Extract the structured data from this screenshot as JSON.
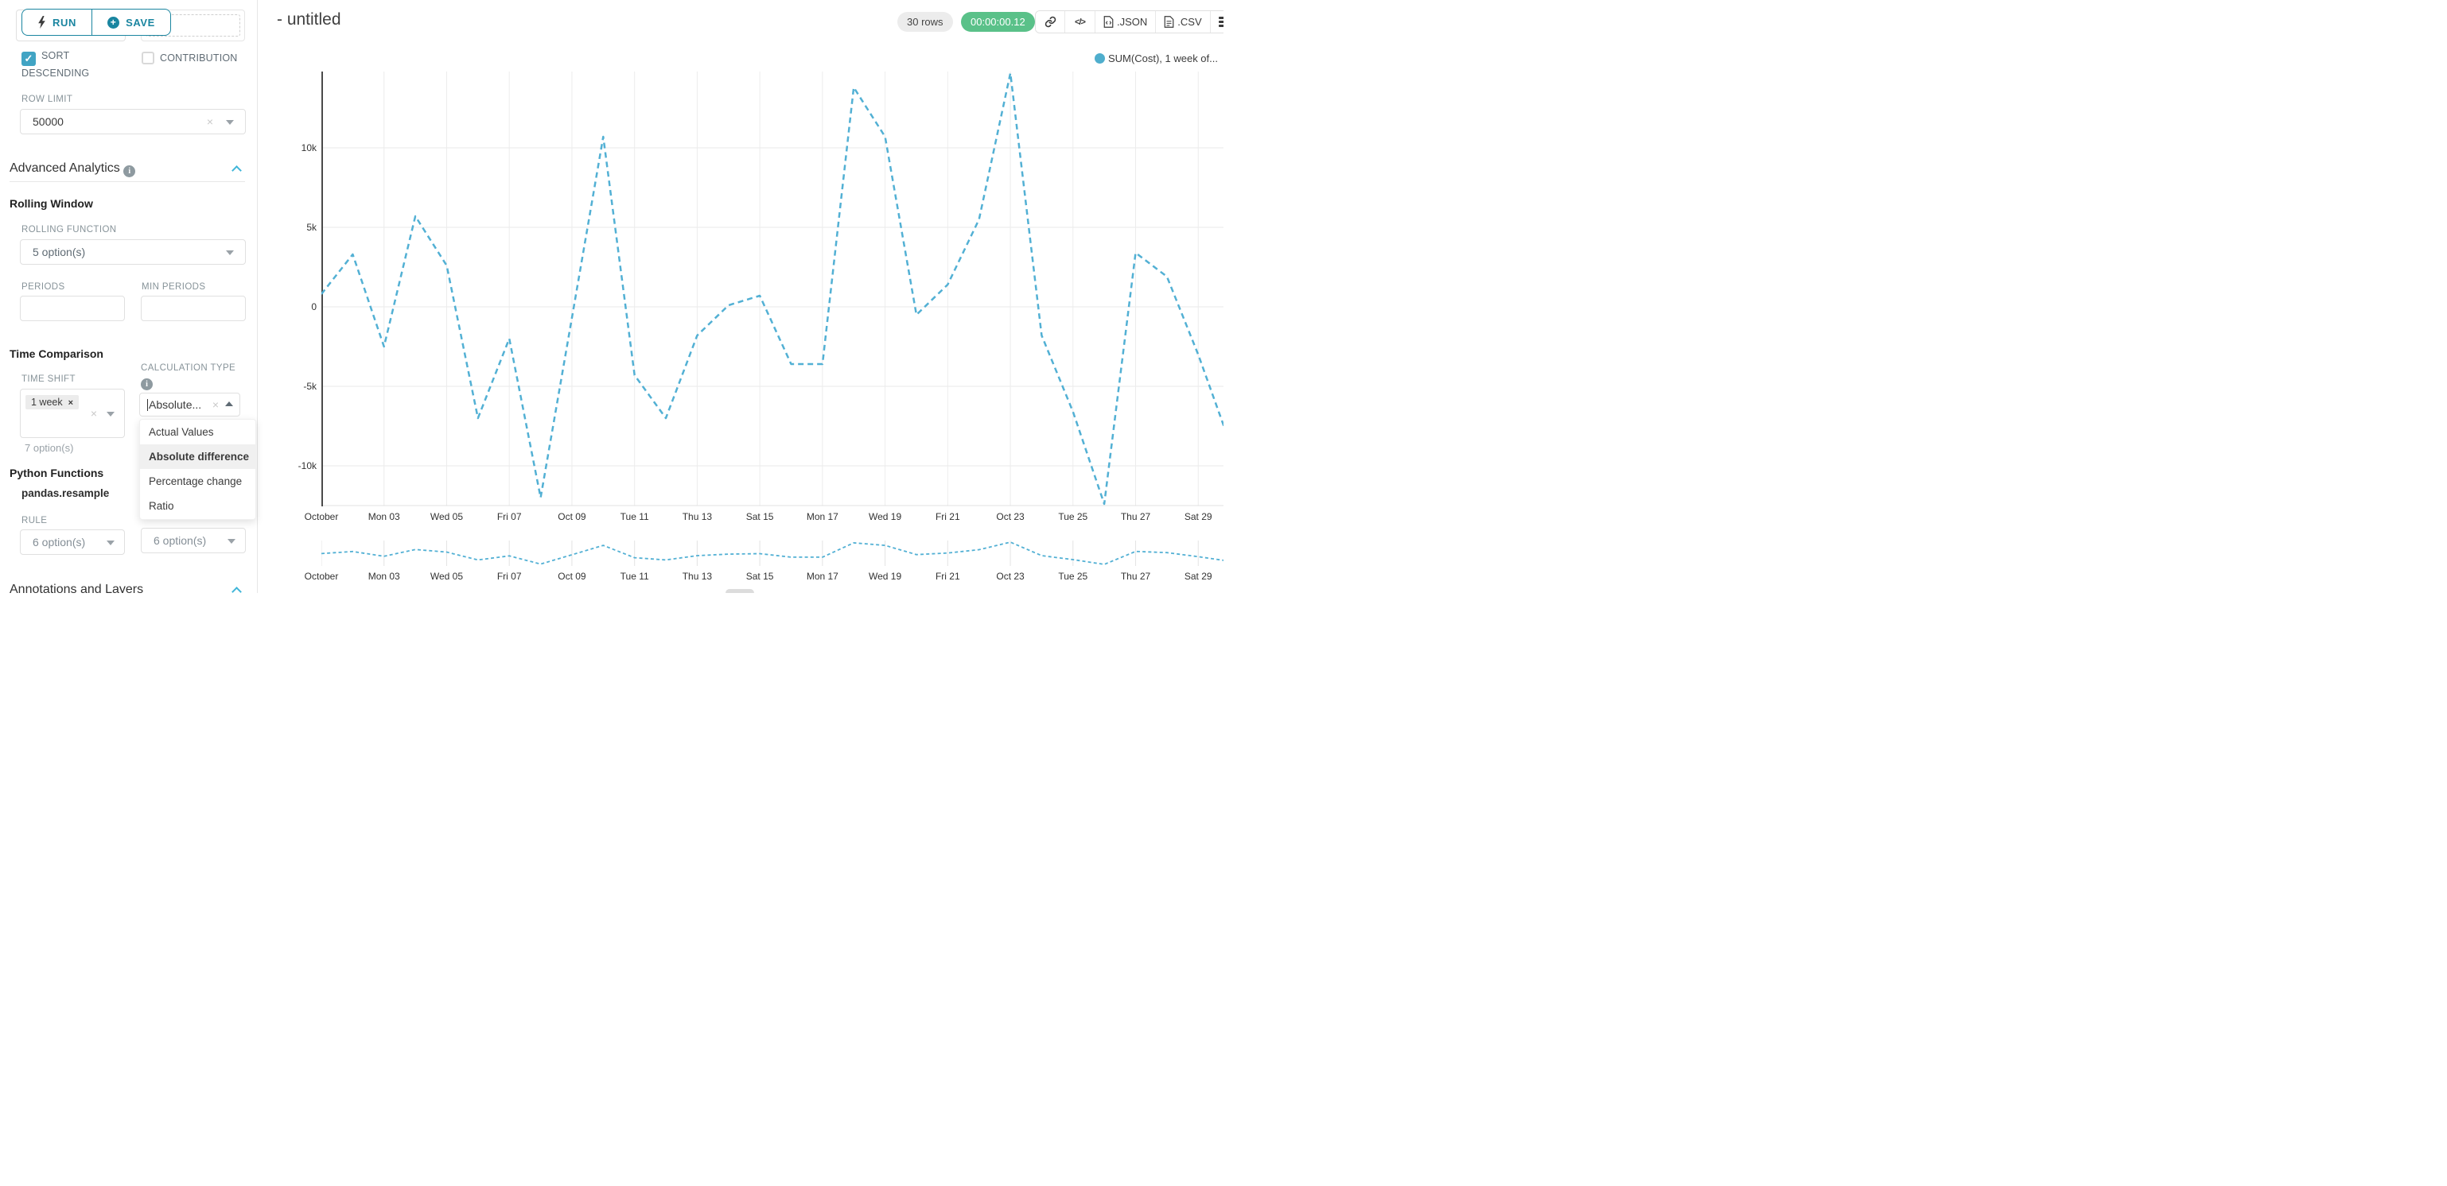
{
  "colors": {
    "accent_teal": "#1a85a0",
    "checkbox_teal": "#41a4c4",
    "line_blue": "#52b0d4",
    "badge_green": "#5ac189",
    "chevron_blue": "#41b6d9"
  },
  "toolbar": {
    "run_label": "RUN",
    "save_label": "SAVE"
  },
  "panel": {
    "top_cut_select_value": "7 option(s)",
    "sort_descending_label": "SORT DESCENDING",
    "contribution_label": "CONTRIBUTION",
    "row_limit_label": "ROW LIMIT",
    "row_limit_value": "50000",
    "advanced_analytics_title": "Advanced Analytics",
    "rolling_window_title": "Rolling Window",
    "rolling_function_label": "ROLLING FUNCTION",
    "rolling_function_value": "5 option(s)",
    "periods_label": "PERIODS",
    "min_periods_label": "MIN PERIODS",
    "time_comparison_title": "Time Comparison",
    "time_shift_label": "TIME SHIFT",
    "time_shift_tag": "1 week",
    "time_shift_placeholder": "7 option(s)",
    "calculation_type_label": "CALCULATION TYPE",
    "calculation_type_value": "Absolute...",
    "dropdown_options": [
      "Actual Values",
      "Absolute difference",
      "Percentage change",
      "Ratio"
    ],
    "dropdown_selected": "Absolute difference",
    "python_functions_title": "Python Functions",
    "pandas_resample_label": "pandas.resample",
    "rule_label": "RULE",
    "rule_value": "6 option(s)",
    "method_value": "6 option(s)",
    "annotations_title": "Annotations and Layers"
  },
  "header": {
    "title": "- untitled",
    "rows_badge": "30 rows",
    "timer_badge": "00:00:00.12",
    "json_label": ".JSON",
    "csv_label": ".CSV",
    "code_glyph": "</>"
  },
  "chart_data": {
    "type": "line",
    "title": "",
    "legend": {
      "position": "top-right",
      "entries": [
        "SUM(Cost), 1 week of..."
      ]
    },
    "grid": true,
    "x_start_day": 1,
    "series": [
      {
        "name": "SUM(Cost), 1 week of...",
        "line_style": "dashed",
        "color": "#52b0d4",
        "values": [
          800,
          3300,
          -2500,
          5700,
          2600,
          -7000,
          -2000,
          -12000,
          -700,
          10700,
          -4300,
          -7000,
          -1800,
          100,
          700,
          -3600,
          -3600,
          13800,
          10700,
          -500,
          1400,
          5500,
          14700,
          -1800,
          -6600,
          -12400,
          3400,
          1900,
          -3000,
          -8500
        ]
      }
    ],
    "x_axis": {
      "ticks": [
        {
          "label": "October",
          "day": 1
        },
        {
          "label": "Mon 03",
          "day": 3
        },
        {
          "label": "Wed 05",
          "day": 5
        },
        {
          "label": "Fri 07",
          "day": 7
        },
        {
          "label": "Oct 09",
          "day": 9
        },
        {
          "label": "Tue 11",
          "day": 11
        },
        {
          "label": "Thu 13",
          "day": 13
        },
        {
          "label": "Sat 15",
          "day": 15
        },
        {
          "label": "Mon 17",
          "day": 17
        },
        {
          "label": "Wed 19",
          "day": 19
        },
        {
          "label": "Fri 21",
          "day": 21
        },
        {
          "label": "Oct 23",
          "day": 23
        },
        {
          "label": "Tue 25",
          "day": 25
        },
        {
          "label": "Thu 27",
          "day": 27
        },
        {
          "label": "Sat 29",
          "day": 29
        }
      ]
    },
    "y_axis": {
      "ticks": [
        {
          "label": "10k",
          "value": 10000
        },
        {
          "label": "5k",
          "value": 5000
        },
        {
          "label": "0",
          "value": 0
        },
        {
          "label": "-5k",
          "value": -5000
        },
        {
          "label": "-10k",
          "value": -10000
        }
      ],
      "range": [
        -12550,
        14800
      ]
    },
    "mini_preview": true
  }
}
